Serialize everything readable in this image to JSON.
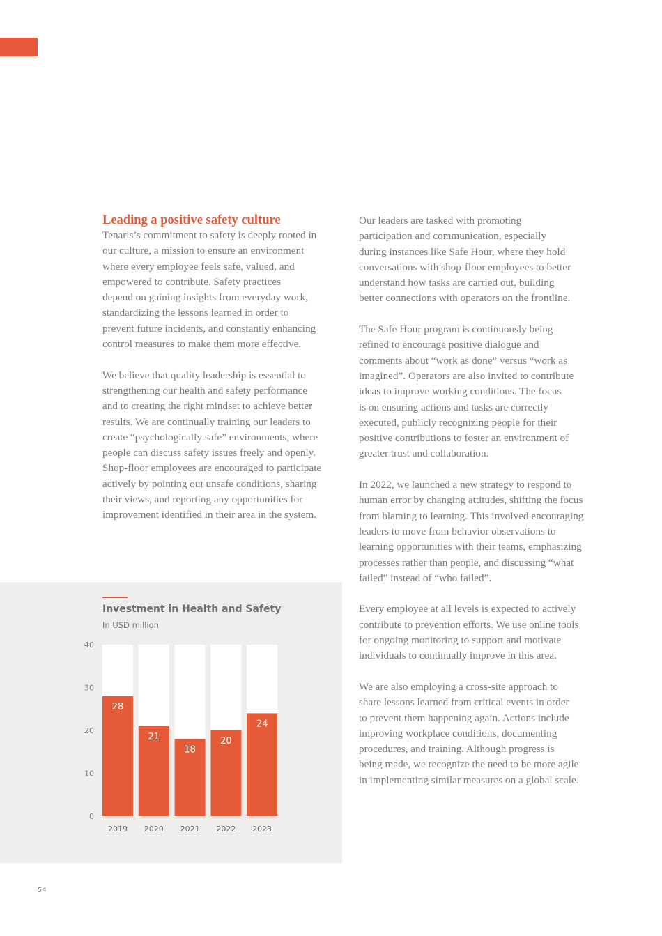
{
  "left": {
    "heading": "Leading a positive safety culture",
    "paragraphs": [
      [
        "Tenaris’s commitment to safety is deeply rooted in",
        "our culture, a mission to ensure an environment",
        "where every employee feels safe, valued, and",
        "empowered to contribute. Safety practices",
        "depend on gaining insights from everyday work,",
        "standardizing the lessons learned in order to",
        "prevent future incidents, and constantly enhancing",
        "control measures to make them more effective."
      ],
      [
        "We believe that quality leadership is essential to",
        "strengthening our health and safety performance",
        "and to creating the right mindset to achieve better",
        "results. We are continually training our leaders to",
        "create “psychologically safe” environments, where",
        "people can discuss safety issues freely and openly.",
        "Shop-floor employees are encouraged to participate",
        "actively by pointing out unsafe conditions, sharing",
        "their views, and reporting any opportunities for",
        "improvement identified in their area in the system."
      ]
    ]
  },
  "right": {
    "paragraphs": [
      [
        "Our leaders are tasked with promoting",
        "participation and communication, especially",
        "during instances like Safe Hour, where they hold",
        "conversations with shop-floor employees to better",
        "understand how tasks are carried out, building",
        "better connections with operators on the frontline."
      ],
      [
        "The Safe Hour program is continuously being",
        "refined to encourage positive dialogue and",
        "comments about “work as done” versus “work as",
        "imagined”. Operators are also invited to contribute",
        "ideas to improve working conditions. The focus",
        "is on ensuring actions and tasks are correctly",
        "executed, publicly recognizing people for their",
        "positive contributions to foster an environment of",
        "greater trust and collaboration."
      ],
      [
        "In 2022, we launched a new strategy to respond to",
        "human error by changing attitudes, shifting the focus",
        "from blaming to learning. This involved encouraging",
        "leaders to move from behavior observations to",
        "learning opportunities with their teams, emphasizing",
        "processes rather than people, and discussing “what",
        "failed” instead of “who failed”."
      ],
      [
        "Every employee at all levels is expected to actively",
        "contribute to prevention efforts. We use online tools",
        "for ongoing monitoring to support and motivate",
        "individuals to continually improve in this area."
      ],
      [
        "We are also employing a cross-site approach to",
        "share lessons learned from critical events in order",
        "to prevent them happening again. Actions include",
        "improving workplace conditions, documenting",
        "procedures, and training. Although progress is",
        "being made, we recognize the need to be more agile",
        "in implementing similar measures on a global scale."
      ]
    ]
  },
  "chart_data": {
    "type": "bar",
    "title": "Investment in Health and Safety",
    "subtitle": "In USD million",
    "categories": [
      "2019",
      "2020",
      "2021",
      "2022",
      "2023"
    ],
    "values": [
      28,
      21,
      18,
      20,
      24
    ],
    "data_labels": [
      "28",
      "21",
      "18",
      "20",
      "24"
    ],
    "ylim": [
      0,
      40
    ],
    "yticks": [
      "0",
      "10",
      "20",
      "30",
      "40"
    ],
    "grid": false,
    "bar_color": "#e55b37",
    "background_bar_color": "#ffffff"
  },
  "page_number": "54",
  "colors": {
    "accent": "#e8583a",
    "heading": "#e05a3a",
    "body_text": "#7a7a7a",
    "panel": "#efeeed"
  }
}
